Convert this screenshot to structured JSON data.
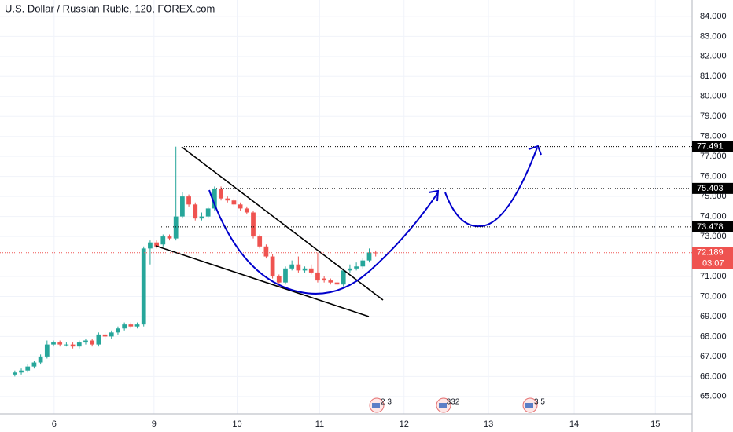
{
  "chart_data": {
    "type": "candlestick",
    "title": "U.S. Dollar / Russian Ruble, 120, FOREX.com",
    "up_color": "#26a69a",
    "down_color": "#ef5350",
    "grid": true,
    "open": [
      66.1,
      66.2,
      66.3,
      66.5,
      66.7,
      67.0,
      67.6,
      67.7,
      67.6,
      67.6,
      67.5,
      67.7,
      67.8,
      67.6,
      68.1,
      68.0,
      68.2,
      68.4,
      68.6,
      68.5,
      68.6,
      72.4,
      72.7,
      72.6,
      73.0,
      72.9,
      74.0,
      75.0,
      74.6,
      73.9,
      74.0,
      74.4,
      75.4,
      74.9,
      74.8,
      74.6,
      74.4,
      74.2,
      73.0,
      72.5,
      72.0,
      71.0,
      70.7,
      71.4,
      71.6,
      71.3,
      71.4,
      71.2,
      70.9,
      70.8,
      70.7,
      70.6,
      71.3,
      71.4,
      71.5,
      71.8,
      72.2
    ],
    "high": [
      66.3,
      66.4,
      66.6,
      66.8,
      67.1,
      67.8,
      67.8,
      67.8,
      67.7,
      67.7,
      67.8,
      67.9,
      67.9,
      68.2,
      68.2,
      68.3,
      68.5,
      68.7,
      68.7,
      68.7,
      72.5,
      72.8,
      72.8,
      73.1,
      73.1,
      77.491,
      75.2,
      75.1,
      74.7,
      74.2,
      74.5,
      75.5,
      75.5,
      75.0,
      74.9,
      74.7,
      74.5,
      74.3,
      73.1,
      72.6,
      72.1,
      71.1,
      71.5,
      71.8,
      72.0,
      71.5,
      71.6,
      72.2,
      71.0,
      70.9,
      70.8,
      71.4,
      71.6,
      71.7,
      71.9,
      72.4,
      72.3
    ],
    "low": [
      66.0,
      66.1,
      66.2,
      66.4,
      66.6,
      66.9,
      67.5,
      67.5,
      67.5,
      67.4,
      67.4,
      67.6,
      67.5,
      67.5,
      67.9,
      67.9,
      68.1,
      68.3,
      68.4,
      68.4,
      68.5,
      71.6,
      72.4,
      72.5,
      72.8,
      72.8,
      73.9,
      74.5,
      73.8,
      73.8,
      73.9,
      74.3,
      74.8,
      74.7,
      74.5,
      74.3,
      74.1,
      72.9,
      72.4,
      71.9,
      70.9,
      70.5,
      70.6,
      71.3,
      71.2,
      71.2,
      71.1,
      70.7,
      70.7,
      70.6,
      70.5,
      70.5,
      71.2,
      71.3,
      71.4,
      71.7,
      72.0
    ],
    "close": [
      66.2,
      66.3,
      66.5,
      66.7,
      67.0,
      67.6,
      67.7,
      67.6,
      67.6,
      67.5,
      67.7,
      67.8,
      67.6,
      68.1,
      68.0,
      68.2,
      68.4,
      68.6,
      68.5,
      68.6,
      72.4,
      72.7,
      72.5,
      73.0,
      72.9,
      74.0,
      75.0,
      74.6,
      73.9,
      74.0,
      74.4,
      75.4,
      74.9,
      74.8,
      74.6,
      74.4,
      74.2,
      73.0,
      72.5,
      72.0,
      71.0,
      70.7,
      71.4,
      71.6,
      71.3,
      71.4,
      71.2,
      70.8,
      70.8,
      70.7,
      70.6,
      71.3,
      71.4,
      71.5,
      71.8,
      72.2,
      72.189
    ],
    "xlim": [
      -2.3,
      105.1
    ],
    "xticks": [
      {
        "value": 6.1,
        "label": "6"
      },
      {
        "value": 21.6,
        "label": "9"
      },
      {
        "value": 34.5,
        "label": "10"
      },
      {
        "value": 47.3,
        "label": "11"
      },
      {
        "value": 60.4,
        "label": "12"
      },
      {
        "value": 73.5,
        "label": "13"
      },
      {
        "value": 86.8,
        "label": "14"
      },
      {
        "value": 99.4,
        "label": "15"
      }
    ],
    "ylim": [
      64.13,
      84.82
    ],
    "yticks": [
      {
        "value": 84,
        "label": "84.000"
      },
      {
        "value": 83,
        "label": "83.000"
      },
      {
        "value": 82,
        "label": "82.000"
      },
      {
        "value": 81,
        "label": "81.000"
      },
      {
        "value": 80,
        "label": "80.000"
      },
      {
        "value": 79,
        "label": "79.000"
      },
      {
        "value": 78,
        "label": "78.000"
      },
      {
        "value": 77,
        "label": "77.000"
      },
      {
        "value": 76,
        "label": "76.000"
      },
      {
        "value": 75,
        "label": "75.000"
      },
      {
        "value": 74,
        "label": "74.000"
      },
      {
        "value": 73,
        "label": "73.000"
      },
      {
        "value": 71,
        "label": "71.000"
      },
      {
        "value": 70,
        "label": "70.000"
      },
      {
        "value": 69,
        "label": "69.000"
      },
      {
        "value": 68,
        "label": "68.000"
      },
      {
        "value": 67,
        "label": "67.000"
      },
      {
        "value": 66,
        "label": "66.000"
      },
      {
        "value": 65,
        "label": "65.000"
      }
    ],
    "levels": [
      77.491,
      75.403,
      73.478
    ],
    "last_price": 72.189,
    "countdown": "03:07",
    "events": [
      "2 3",
      "332",
      "3 5"
    ]
  }
}
